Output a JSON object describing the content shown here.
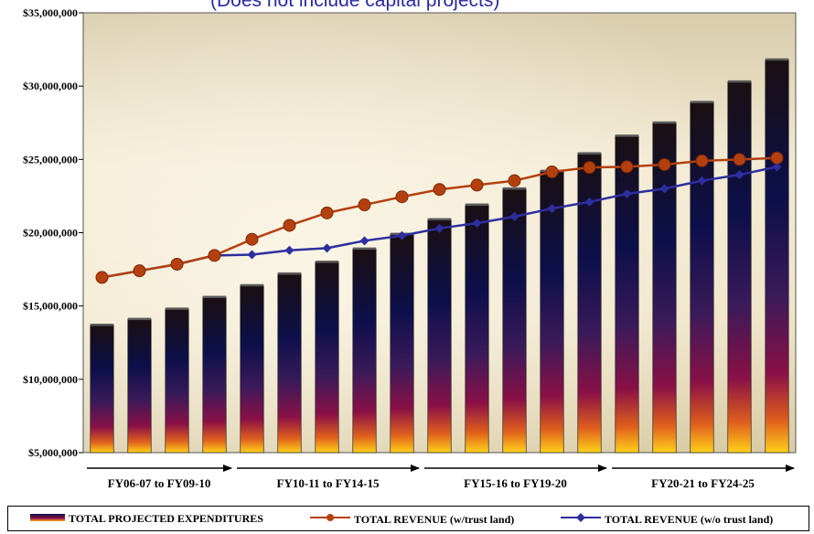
{
  "chart_data": {
    "type": "bar",
    "title": "",
    "subtitle": "(Does not include capital projects)",
    "ylim": [
      5000000,
      35000000
    ],
    "y_ticks": [
      "$5,000,000",
      "$10,000,000",
      "$15,000,000",
      "$20,000,000",
      "$25,000,000",
      "$30,000,000",
      "$35,000,000"
    ],
    "y_tick_values": [
      5000000,
      10000000,
      15000000,
      20000000,
      25000000,
      30000000,
      35000000
    ],
    "periods": [
      {
        "label": "FY06-07 to FY09-10",
        "start": 0,
        "end": 3
      },
      {
        "label": "FY10-11 to FY14-15",
        "start": 4,
        "end": 8
      },
      {
        "label": "FY15-16 to FY19-20",
        "start": 9,
        "end": 13
      },
      {
        "label": "FY20-21 to FY24-25",
        "start": 14,
        "end": 18
      }
    ],
    "series": [
      {
        "name": "TOTAL PROJECTED EXPENDITURES",
        "kind": "bar",
        "values": [
          13700000,
          14100000,
          14800000,
          15600000,
          16400000,
          17200000,
          18000000,
          18900000,
          19900000,
          20900000,
          21900000,
          23000000,
          24200000,
          25400000,
          26600000,
          27500000,
          28900000,
          30300000,
          31800000
        ]
      },
      {
        "name": "TOTAL REVENUE (w/trust land)",
        "kind": "line",
        "color": "#b5400f",
        "marker": "circle",
        "values": [
          16950000,
          17400000,
          17850000,
          18450000,
          19550000,
          20500000,
          21350000,
          21900000,
          22450000,
          22950000,
          23250000,
          23550000,
          24150000,
          24450000,
          24500000,
          24650000,
          24900000,
          25000000,
          25100000
        ]
      },
      {
        "name": "TOTAL REVENUE (w/o trust land)",
        "kind": "line",
        "color": "#2e2e9e",
        "marker": "diamond",
        "values": [
          16950000,
          17400000,
          17850000,
          18450000,
          18500000,
          18800000,
          18950000,
          19450000,
          19800000,
          20300000,
          20650000,
          21100000,
          21650000,
          22100000,
          22650000,
          23000000,
          23550000,
          23950000,
          24500000
        ]
      }
    ]
  }
}
